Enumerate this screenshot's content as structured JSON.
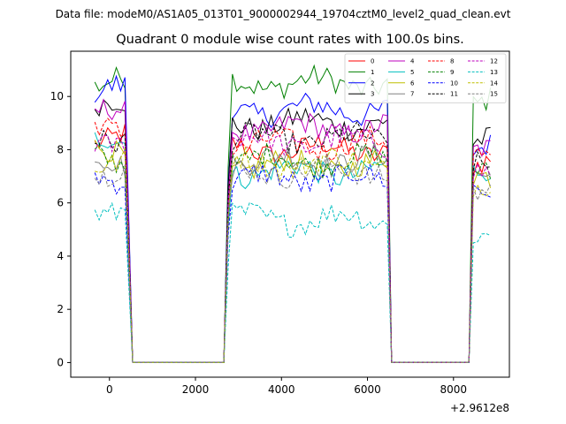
{
  "header": {
    "datafile_text": "Data file: modeM0/AS1A05_013T01_9000002944_19704cztM0_level2_quad_clean.evt"
  },
  "chart_data": {
    "type": "line",
    "title": "Quadrant 0 module wise count rates with 100.0s bins.",
    "xlabel": "",
    "ylabel": "",
    "x_offset_label": "+2.9612e8",
    "xlim": [
      -900,
      9300
    ],
    "ylim": [
      -0.55,
      11.7
    ],
    "x_ticks": [
      0,
      2000,
      4000,
      6000,
      8000
    ],
    "x_tick_labels": [
      "0",
      "2000",
      "4000",
      "6000",
      "8000"
    ],
    "y_ticks": [
      0,
      2,
      4,
      6,
      8,
      10
    ],
    "y_tick_labels": [
      "0",
      "2",
      "4",
      "6",
      "8",
      "10"
    ],
    "grid": false,
    "legend": {
      "placement": "top-right",
      "columns": 4
    },
    "segments": [
      {
        "start": -340,
        "end": 440,
        "pad_start": 0,
        "pad_end": 5,
        "rise_ratio": 0
      },
      {
        "start": 2760,
        "end": 6460,
        "pad_start": 8,
        "pad_end": 6,
        "rise_ratio": 0.72
      },
      {
        "start": 8460,
        "end": 8860,
        "pad_start": 3,
        "pad_end": 0,
        "rise_ratio": 0
      }
    ],
    "bin_width": 100,
    "series": [
      {
        "name": "0",
        "color": "#ff0000",
        "dash": "solid",
        "seg_levels": [
          8.4,
          8.0,
          7.6
        ]
      },
      {
        "name": "1",
        "color": "#008000",
        "dash": "solid",
        "seg_levels": [
          10.5,
          10.5,
          9.8
        ]
      },
      {
        "name": "2",
        "color": "#0000ff",
        "dash": "solid",
        "seg_levels": [
          10.2,
          9.5,
          8.0
        ]
      },
      {
        "name": "3",
        "color": "#000000",
        "dash": "solid",
        "seg_levels": [
          9.6,
          9.0,
          8.2
        ]
      },
      {
        "name": "4",
        "color": "#bf00bf",
        "dash": "solid",
        "seg_levels": [
          9.3,
          8.8,
          7.8
        ]
      },
      {
        "name": "5",
        "color": "#00bfbf",
        "dash": "solid",
        "seg_levels": [
          8.2,
          7.2,
          7.0
        ]
      },
      {
        "name": "6",
        "color": "#bfbf00",
        "dash": "solid",
        "seg_levels": [
          7.8,
          7.4,
          6.8
        ]
      },
      {
        "name": "7",
        "color": "#808080",
        "dash": "solid",
        "seg_levels": [
          7.5,
          7.6,
          6.9
        ]
      },
      {
        "name": "8",
        "color": "#ff0000",
        "dash": "dashed",
        "seg_levels": [
          8.8,
          8.2,
          7.7
        ]
      },
      {
        "name": "9",
        "color": "#008000",
        "dash": "dashed",
        "seg_levels": [
          7.7,
          7.6,
          7.2
        ]
      },
      {
        "name": "10",
        "color": "#0000ff",
        "dash": "dashed",
        "seg_levels": [
          7.0,
          6.9,
          6.5
        ]
      },
      {
        "name": "11",
        "color": "#000000",
        "dash": "dashed",
        "seg_levels": [
          8.5,
          8.4,
          7.6
        ]
      },
      {
        "name": "12",
        "color": "#bf00bf",
        "dash": "dashed",
        "seg_levels": [
          8.4,
          8.3,
          7.4
        ]
      },
      {
        "name": "13",
        "color": "#00bfbf",
        "dash": "dashed",
        "seg_levels": [
          5.8,
          5.4,
          5.0
        ]
      },
      {
        "name": "14",
        "color": "#bfbf00",
        "dash": "dashed",
        "seg_levels": [
          7.6,
          7.5,
          6.9
        ]
      },
      {
        "name": "15",
        "color": "#808080",
        "dash": "dashed",
        "seg_levels": [
          7.2,
          7.2,
          6.6
        ]
      }
    ]
  }
}
